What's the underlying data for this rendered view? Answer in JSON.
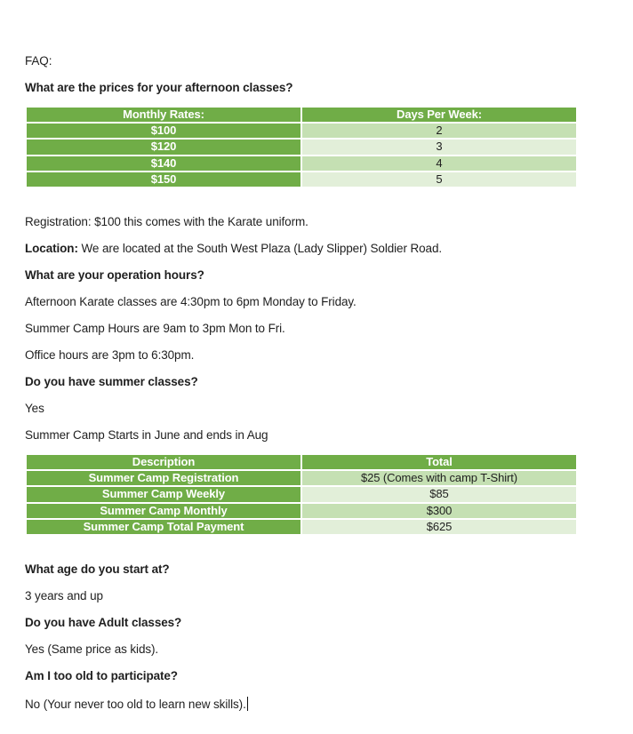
{
  "colors": {
    "table_green": "#70AD47",
    "band_light_green": "#C5E0B3",
    "band_lighter_green": "#E2EFD9",
    "table_header_text": "#FFFFFF",
    "body_text": "#1F1F1F"
  },
  "doc": {
    "faq_label": "FAQ:",
    "q_afternoon_prices": "What are the prices for your afternoon classes?",
    "pricing_table": {
      "headers": [
        "Monthly Rates:",
        "Days Per Week:"
      ],
      "rows": [
        {
          "rate": "$100",
          "days": "2"
        },
        {
          "rate": "$120",
          "days": "3"
        },
        {
          "rate": "$140",
          "days": "4"
        },
        {
          "rate": "$150",
          "days": "5"
        }
      ]
    },
    "p_registration": "Registration: $100 this comes with the Karate uniform.",
    "location_label": "Location:",
    "location_text": " We are located at the South West Plaza (Lady Slipper) Soldier Road.",
    "q_operation_hours": "What are your operation hours?",
    "p_afternoon_hours": "Afternoon Karate classes are 4:30pm to 6pm Monday to Friday.",
    "p_summer_camp_hours": "Summer Camp Hours are 9am to 3pm Mon to Fri.",
    "p_office_hours": "Office hours are 3pm to 6:30pm.",
    "q_summer_classes": "Do you have summer classes?",
    "a_summer_classes": "Yes",
    "p_summer_dates": "Summer Camp Starts in June and ends in Aug",
    "summer_table": {
      "headers": [
        "Description",
        "Total"
      ],
      "rows": [
        {
          "description": "Summer Camp Registration",
          "total": "$25 (Comes with camp T-Shirt)"
        },
        {
          "description": "Summer Camp Weekly",
          "total": "$85"
        },
        {
          "description": "Summer Camp Monthly",
          "total": "$300"
        },
        {
          "description": "Summer Camp Total Payment",
          "total": "$625"
        }
      ]
    },
    "q_start_age": "What age do you start at?",
    "a_start_age": "3 years and up",
    "q_adult_classes": "Do you have Adult classes?",
    "a_adult_classes": "Yes (Same price as kids).",
    "q_too_old": "Am I too old to participate?",
    "a_too_old": "No (Your never too old to learn new skills)."
  }
}
